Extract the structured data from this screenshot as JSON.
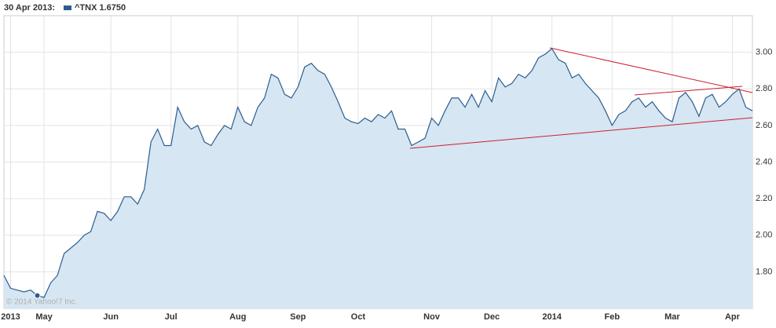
{
  "chart_data": {
    "type": "area",
    "legend_date": "30 Apr 2013:",
    "series": [
      {
        "name": "^TNX 1.6750",
        "color": "#2b5d8f",
        "fill": "#d6e6f2",
        "values": [
          1.78,
          1.71,
          1.7,
          1.69,
          1.7,
          1.67,
          1.66,
          1.74,
          1.78,
          1.9,
          1.93,
          1.96,
          2.0,
          2.02,
          2.13,
          2.12,
          2.08,
          2.13,
          2.21,
          2.21,
          2.17,
          2.25,
          2.51,
          2.58,
          2.49,
          2.49,
          2.7,
          2.62,
          2.58,
          2.6,
          2.51,
          2.49,
          2.55,
          2.6,
          2.58,
          2.7,
          2.62,
          2.6,
          2.7,
          2.75,
          2.88,
          2.86,
          2.77,
          2.75,
          2.81,
          2.92,
          2.94,
          2.9,
          2.88,
          2.81,
          2.73,
          2.64,
          2.62,
          2.61,
          2.64,
          2.62,
          2.66,
          2.64,
          2.68,
          2.58,
          2.58,
          2.49,
          2.51,
          2.53,
          2.64,
          2.6,
          2.68,
          2.75,
          2.75,
          2.7,
          2.77,
          2.7,
          2.79,
          2.73,
          2.86,
          2.81,
          2.83,
          2.88,
          2.86,
          2.9,
          2.97,
          2.99,
          3.02,
          2.96,
          2.94,
          2.86,
          2.88,
          2.83,
          2.79,
          2.75,
          2.68,
          2.6,
          2.66,
          2.68,
          2.73,
          2.75,
          2.7,
          2.73,
          2.68,
          2.64,
          2.62,
          2.75,
          2.78,
          2.73,
          2.65,
          2.75,
          2.77,
          2.7,
          2.73,
          2.77,
          2.8,
          2.7,
          2.68
        ]
      }
    ],
    "categories": [
      null,
      "2013",
      null,
      null,
      null,
      null,
      "May",
      null,
      null,
      null,
      null,
      null,
      null,
      null,
      null,
      null,
      "Jun",
      null,
      null,
      null,
      null,
      null,
      null,
      null,
      null,
      "Jul",
      null,
      null,
      null,
      null,
      null,
      null,
      null,
      null,
      null,
      "Aug",
      null,
      null,
      null,
      null,
      null,
      null,
      null,
      null,
      "Sep",
      null,
      null,
      null,
      null,
      null,
      null,
      null,
      null,
      "Oct",
      null,
      null,
      null,
      null,
      null,
      null,
      null,
      null,
      null,
      null,
      "Nov",
      null,
      null,
      null,
      null,
      null,
      null,
      null,
      null,
      "Dec",
      null,
      null,
      null,
      null,
      null,
      null,
      null,
      null,
      "2014",
      null,
      null,
      null,
      null,
      null,
      null,
      null,
      null,
      "Feb",
      null,
      null,
      null,
      null,
      null,
      null,
      null,
      null,
      "Mar",
      null,
      null,
      null,
      null,
      null,
      null,
      null,
      null,
      "Apr",
      null,
      null,
      null
    ],
    "ylim": [
      1.6,
      3.2
    ],
    "yticks": [
      {
        "value": 1.8,
        "label": "1.80"
      },
      {
        "value": 2.0,
        "label": "2.00"
      },
      {
        "value": 2.2,
        "label": "2.20"
      },
      {
        "value": 2.4,
        "label": "2.40"
      },
      {
        "value": 2.6,
        "label": "2.60"
      },
      {
        "value": 2.8,
        "label": "2.80"
      },
      {
        "value": 3.0,
        "label": "3.00"
      }
    ],
    "grid": true,
    "watermark": "© 2014 Yahoo!7 Inc."
  }
}
